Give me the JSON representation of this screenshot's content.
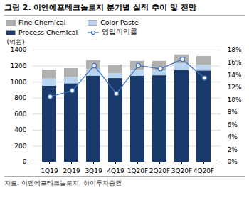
{
  "chart_data": {
    "type": "bar",
    "stacked": true,
    "title": "그림 2. 이엔에프테크놀로지 분기별 실적 추이 및 전망",
    "ylabel": "(억원)",
    "annotations": [
      "자료: 이엔에프테크놀로지, 하이투자증권"
    ],
    "categories": [
      "1Q19",
      "2Q19",
      "3Q19",
      "4Q19",
      "1Q20F",
      "2Q20F",
      "3Q20F",
      "4Q20F"
    ],
    "series": [
      {
        "name": "Process Chemical",
        "type": "bar",
        "color": "#1a3a6b",
        "values": [
          950,
          980,
          1075,
          1045,
          1075,
          1080,
          1145,
          1140
        ]
      },
      {
        "name": "Color Paste",
        "type": "bar",
        "color": "#b8d4f0",
        "values": [
          90,
          80,
          85,
          60,
          75,
          70,
          85,
          70
        ]
      },
      {
        "name": "Fine Chemical",
        "type": "bar",
        "color": "#b0b0b0",
        "values": [
          110,
          110,
          110,
          110,
          110,
          110,
          110,
          110
        ]
      },
      {
        "name": "영업이익률",
        "type": "line",
        "axis": "y2",
        "color": "#4472c4",
        "marker": "circle",
        "values": [
          10.5,
          11.5,
          15.5,
          11.0,
          15.5,
          15.0,
          16.5,
          13.5
        ]
      }
    ],
    "ylim": [
      0,
      1400
    ],
    "yticks": [
      0,
      200,
      400,
      600,
      800,
      1000,
      1200,
      1400
    ],
    "y2lim": [
      0,
      18
    ],
    "y2ticks": [
      {
        "value": 0,
        "label": "0%"
      },
      {
        "value": 2,
        "label": "2%"
      },
      {
        "value": 4,
        "label": "4%"
      },
      {
        "value": 6,
        "label": "6%"
      },
      {
        "value": 8,
        "label": "8%"
      },
      {
        "value": 10,
        "label": "10%"
      },
      {
        "value": 12,
        "label": "12%"
      },
      {
        "value": 14,
        "label": "14%"
      },
      {
        "value": 16,
        "label": "16%"
      },
      {
        "value": 18,
        "label": "18%"
      }
    ],
    "grid": true,
    "legend": "top"
  }
}
